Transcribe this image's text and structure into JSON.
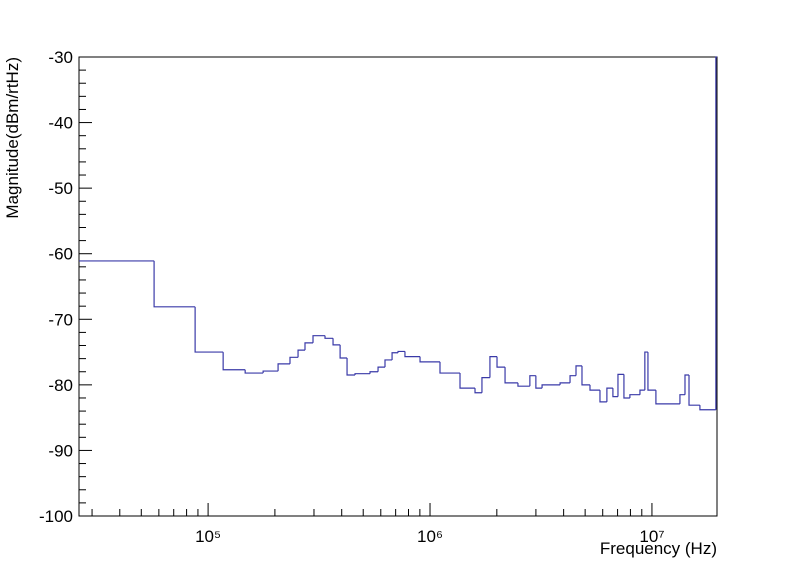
{
  "chart_data": {
    "type": "histogram",
    "x_label": "Frequency (Hz)",
    "y_label": "Magnitude(dBm/rtHz)",
    "x_log": true,
    "color": "#3a3aa8",
    "xlim": [
      26200,
      19640000
    ],
    "ylim": [
      -100,
      -30
    ],
    "xticks": [
      {
        "value": 100000,
        "label": "10⁵"
      },
      {
        "value": 1000000,
        "label": "10⁶"
      },
      {
        "value": 10000000,
        "label": "10⁷"
      }
    ],
    "xminorticks": [
      30000,
      40000,
      50000,
      60000,
      70000,
      80000,
      90000,
      200000,
      300000,
      400000,
      500000,
      600000,
      700000,
      800000,
      900000,
      2000000,
      3000000,
      4000000,
      5000000,
      6000000,
      7000000,
      8000000,
      9000000
    ],
    "yticks": [
      -100,
      -90,
      -80,
      -70,
      -60,
      -50,
      -40,
      -30
    ],
    "yminorticks": [
      -98,
      -96,
      -94,
      -92,
      -88,
      -86,
      -84,
      -82,
      -78,
      -76,
      -74,
      -72,
      -68,
      -66,
      -64,
      -62,
      -58,
      -56,
      -54,
      -52,
      -48,
      -46,
      -44,
      -42,
      -38,
      -36,
      -34,
      -32
    ],
    "bins": [
      26200,
      57100,
      87400,
      116900,
      146900,
      177000,
      206700,
      233900,
      254300,
      273300,
      297000,
      336400,
      365600,
      393400,
      422800,
      459300,
      536600,
      583200,
      626800,
      674500,
      717600,
      771000,
      901600,
      1109000,
      1365000,
      1595000,
      1714000,
      1862000,
      2004000,
      2178000,
      2490000,
      2818000,
      2999000,
      3198000,
      3855000,
      4275000,
      4548000,
      4839000,
      5258000,
      5832000,
      6266000,
      6670000,
      7029000,
      7478000,
      7955000,
      8831000,
      9290000,
      9594000,
      10420000,
      13370000,
      14090000,
      14690000,
      16450000,
      19410000,
      19640000
    ],
    "values": [
      -61.1,
      -68.1,
      -75.0,
      -77.7,
      -78.2,
      -77.9,
      -76.8,
      -75.8,
      -74.7,
      -73.6,
      -72.5,
      -72.9,
      -73.9,
      -75.9,
      -78.5,
      -78.3,
      -78.0,
      -77.3,
      -76.2,
      -75.1,
      -74.9,
      -75.7,
      -76.5,
      -78.2,
      -80.5,
      -81.2,
      -78.9,
      -75.7,
      -77.3,
      -79.7,
      -80.2,
      -78.6,
      -80.5,
      -80.0,
      -79.7,
      -78.6,
      -77.1,
      -80.0,
      -80.8,
      -82.6,
      -80.5,
      -81.8,
      -78.4,
      -82.0,
      -81.5,
      -80.8,
      -75.0,
      -80.8,
      -82.9,
      -81.5,
      -78.5,
      -83.1,
      -83.8,
      -30
    ]
  }
}
